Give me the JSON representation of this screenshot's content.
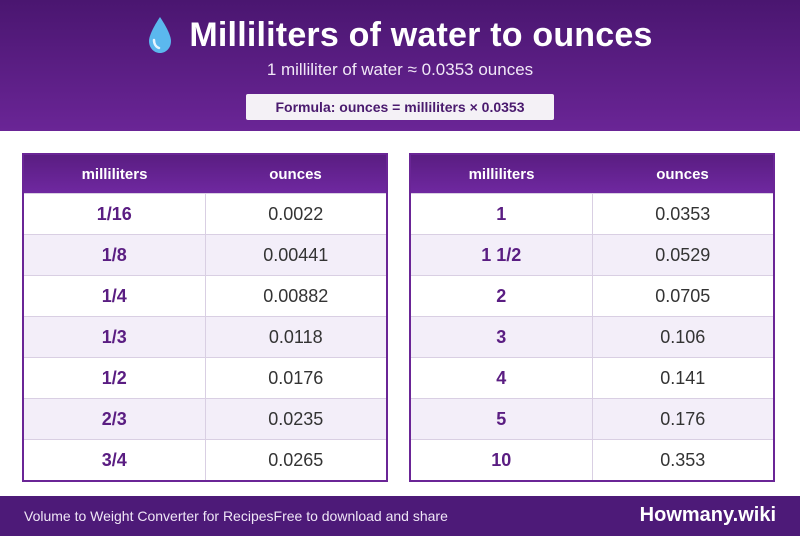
{
  "header": {
    "icon": "water-drop-icon",
    "title": "Milliliters of water to ounces",
    "subtitle": "1 milliliter of water ≈ 0.0353 ounces",
    "formula": "Formula: ounces = milliliters × 0.0353"
  },
  "colors": {
    "header_bg": "#5a1d82",
    "accent": "#6a2596",
    "row_alt": "#f3eef9",
    "drop": "#5bb8ee"
  },
  "tables": [
    {
      "col1_header": "milliliters",
      "col2_header": "ounces",
      "rows": [
        {
          "ml": "1/16",
          "oz": "0.0022"
        },
        {
          "ml": "1/8",
          "oz": "0.00441"
        },
        {
          "ml": "1/4",
          "oz": "0.00882"
        },
        {
          "ml": "1/3",
          "oz": "0.0118"
        },
        {
          "ml": "1/2",
          "oz": "0.0176"
        },
        {
          "ml": "2/3",
          "oz": "0.0235"
        },
        {
          "ml": "3/4",
          "oz": "0.0265"
        }
      ]
    },
    {
      "col1_header": "milliliters",
      "col2_header": "ounces",
      "rows": [
        {
          "ml": "1",
          "oz": "0.0353"
        },
        {
          "ml": "1 1/2",
          "oz": "0.0529"
        },
        {
          "ml": "2",
          "oz": "0.0705"
        },
        {
          "ml": "3",
          "oz": "0.106"
        },
        {
          "ml": "4",
          "oz": "0.141"
        },
        {
          "ml": "5",
          "oz": "0.176"
        },
        {
          "ml": "10",
          "oz": "0.353"
        }
      ]
    }
  ],
  "footer": {
    "left_text": "Volume to Weight Converter for RecipesFree to download and share",
    "brand": "Howmany.wiki"
  }
}
